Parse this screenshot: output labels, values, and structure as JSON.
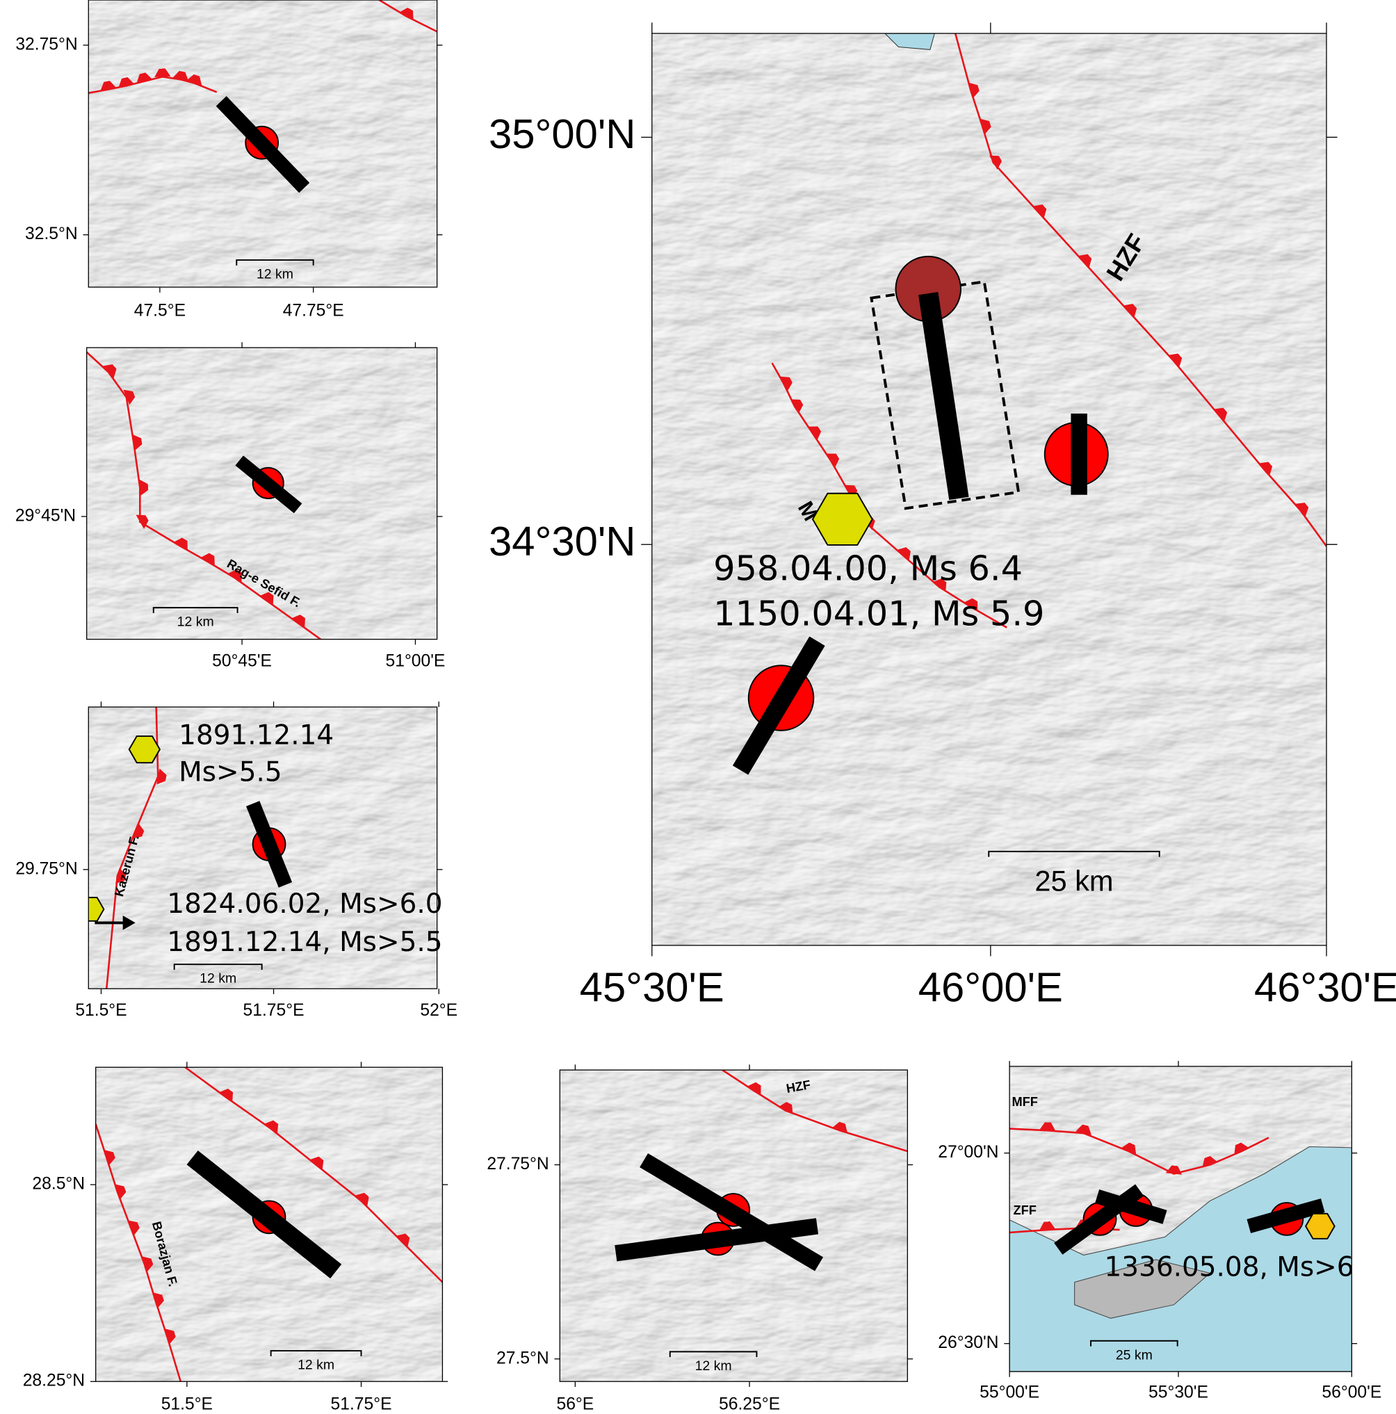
{
  "panels": [
    {
      "lat_labels": [
        "32.75°N",
        "32.5°N"
      ],
      "lon_labels": [
        "47.5°E",
        "47.75°E"
      ],
      "scale_bar": "12 km"
    },
    {
      "lat_labels": [
        "29°45'N"
      ],
      "lon_labels": [
        "50°45'E",
        "51°00'E"
      ],
      "scale_bar": "12 km",
      "fault_labels": [
        "Rag-e Sefid F."
      ]
    },
    {
      "lat_labels": [
        "29.75°N"
      ],
      "lon_labels": [
        "51.5°E",
        "51.75°E",
        "52°E"
      ],
      "scale_bar": "12 km",
      "fault_labels": [
        "Kazerun F."
      ],
      "annotations": [
        "1891.12.14",
        "Ms>5.5",
        "1824.06.02, Ms>6.0",
        "1891.12.14, Ms>5.5"
      ]
    },
    {
      "lat_labels": [
        "35°00'N",
        "34°30'N"
      ],
      "lon_labels": [
        "45°30'E",
        "46°00'E",
        "46°30'E"
      ],
      "scale_bar": "25 km",
      "fault_labels": [
        "HZF",
        "M"
      ],
      "annotations": [
        "958.04.00, Ms 6.4",
        "1150.04.01, Ms 5.9"
      ]
    },
    {
      "lat_labels": [
        "28.5°N",
        "28.25°N"
      ],
      "lon_labels": [
        "51.5°E",
        "51.75°E"
      ],
      "scale_bar": "12 km",
      "fault_labels": [
        "Borazjan F."
      ]
    },
    {
      "lat_labels": [
        "27.75°N",
        "27.5°N"
      ],
      "lon_labels": [
        "56°E",
        "56.25°E"
      ],
      "scale_bar": "12 km",
      "fault_labels": [
        "HZF"
      ]
    },
    {
      "lat_labels": [
        "27°00'N",
        "26°30'N"
      ],
      "lon_labels": [
        "55°00'E",
        "55°30'E",
        "56°00'E"
      ],
      "scale_bar": "25 km",
      "fault_labels": [
        "MFF",
        "ZFF"
      ],
      "annotations": [
        "1336.05.08, Ms>6"
      ]
    }
  ]
}
